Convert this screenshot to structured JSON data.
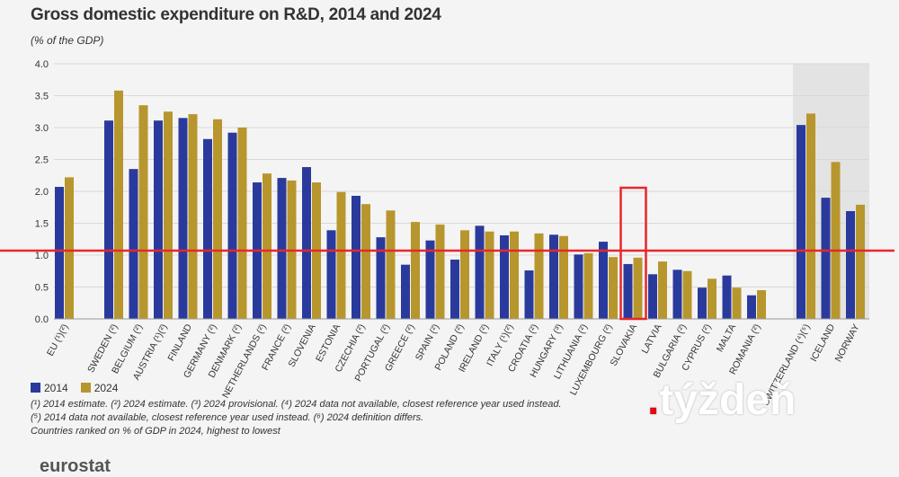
{
  "chart_data": {
    "type": "bar",
    "title": "Gross domestic expenditure on R&D, 2014 and 2024",
    "ylabel": "(% of the GDP)",
    "ylim": [
      0,
      4.0
    ],
    "yticks": [
      "0.0",
      "0.5",
      "1.0",
      "1.5",
      "2.0",
      "2.5",
      "3.0",
      "3.5",
      "4.0"
    ],
    "grid": true,
    "legend_placement": "bottom-left",
    "categories": [
      "EU (¹)(²)",
      "SWEDEN (²)",
      "BELGIUM (²)",
      "AUSTRIA (¹)(²)",
      "FINLAND",
      "GERMANY (²)",
      "DENMARK (²)",
      "NETHERLANDS (²)",
      "FRANCE (²)",
      "SLOVENIA",
      "ESTONIA",
      "CZECHIA (²)",
      "PORTUGAL (²)",
      "GREECE (²)",
      "SPAIN (²)",
      "POLAND (²)",
      "IRELAND (²)",
      "ITALY (¹)(²)",
      "CROATIA (²)",
      "HUNGARY (³)",
      "LITHUANIA (²)",
      "LUXEMBOURG (²)",
      "SLOVAKIA",
      "LATVIA",
      "BULGARIA (²)",
      "CYPRUS (²)",
      "MALTA",
      "ROMANIA (²)",
      "SWITZERLAND (⁴)(⁵)",
      "ICELAND",
      "NORWAY"
    ],
    "series": [
      {
        "name": "2014",
        "color": "#2a3a9c",
        "values": [
          2.07,
          3.11,
          2.35,
          3.11,
          3.15,
          2.82,
          2.92,
          2.14,
          2.21,
          2.38,
          1.39,
          1.93,
          1.28,
          0.85,
          1.23,
          0.93,
          1.46,
          1.31,
          0.76,
          1.32,
          1.01,
          1.21,
          0.86,
          0.7,
          0.77,
          0.49,
          0.68,
          0.37,
          3.04,
          1.9,
          1.69
        ]
      },
      {
        "name": "2024",
        "color": "#b8962e",
        "values": [
          2.22,
          3.58,
          3.35,
          3.25,
          3.21,
          3.13,
          3.0,
          2.28,
          2.17,
          2.14,
          1.99,
          1.8,
          1.7,
          1.52,
          1.48,
          1.39,
          1.37,
          1.37,
          1.34,
          1.3,
          1.03,
          0.97,
          0.96,
          0.9,
          0.75,
          0.63,
          0.49,
          0.45,
          3.22,
          2.46,
          1.79
        ]
      }
    ],
    "annotations": {
      "reference_line_value": 1.07,
      "highlighted_category": "SLOVAKIA"
    }
  },
  "legend": [
    "2014",
    "2024"
  ],
  "notes": [
    "(¹) 2014 estimate. (²) 2024 estimate. (³) 2024 provisional. (⁴) 2024 data not available, closest reference year used instead.",
    "(⁵) 2014 data not available, closest reference year used instead. (⁶) 2024 definition differs.",
    "Countries ranked on % of GDP in 2024, highest to lowest"
  ],
  "source_logo": "eurostat",
  "watermark": "týždeň"
}
